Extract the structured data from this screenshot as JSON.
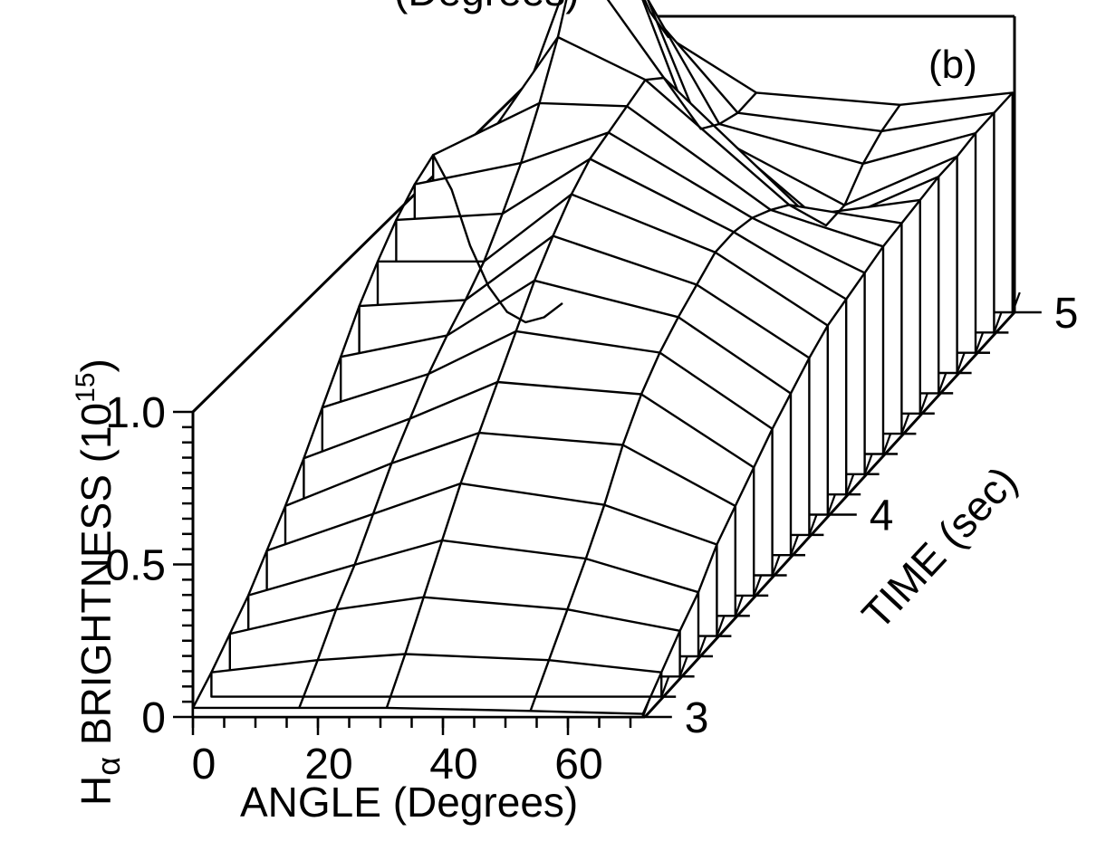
{
  "chart_data": {
    "type": "surface",
    "panel_label": "(b)",
    "title_partial": "(Degrees)",
    "x_axis": {
      "label": "ANGLE (Degrees)",
      "ticks": [
        0,
        20,
        40,
        60
      ],
      "tick_labels": [
        "0",
        "20",
        "40",
        "60"
      ],
      "range": [
        0,
        72
      ]
    },
    "y_axis": {
      "label_main": "H",
      "label_sub": "α",
      "label_rest": " BRIGHTNESS (10",
      "label_sup": "15",
      "label_close": ")",
      "ticks": [
        0,
        0.5,
        1.0
      ],
      "tick_labels": [
        "0",
        "0.5",
        "1.0"
      ],
      "range": [
        0,
        1.0
      ]
    },
    "t_axis": {
      "label": "TIME (sec)",
      "ticks": [
        3,
        4,
        5
      ],
      "tick_labels": [
        "3",
        "4",
        "5"
      ],
      "range": [
        3,
        5
      ]
    },
    "angles": [
      0,
      17,
      31,
      54,
      72
    ],
    "times": [
      3.0,
      3.1,
      3.2,
      3.3,
      3.4,
      3.5,
      3.6,
      3.7,
      3.8,
      3.9,
      4.0,
      4.1,
      4.2,
      4.3,
      4.4,
      4.5,
      4.6,
      4.7,
      4.8,
      4.9,
      5.0
    ],
    "values": [
      [
        0.03,
        0.03,
        0.03,
        0.02,
        0.01
      ],
      [
        0.08,
        0.12,
        0.14,
        0.12,
        0.08
      ],
      [
        0.14,
        0.22,
        0.26,
        0.22,
        0.15
      ],
      [
        0.2,
        0.3,
        0.38,
        0.32,
        0.21
      ],
      [
        0.28,
        0.4,
        0.5,
        0.43,
        0.3
      ],
      [
        0.36,
        0.5,
        0.6,
        0.56,
        0.36
      ],
      [
        0.45,
        0.58,
        0.7,
        0.66,
        0.42
      ],
      [
        0.55,
        0.66,
        0.8,
        0.73,
        0.48
      ],
      [
        0.65,
        0.72,
        0.9,
        0.78,
        0.53
      ],
      [
        0.75,
        0.77,
        0.98,
        0.82,
        0.58
      ],
      [
        0.83,
        0.83,
        1.05,
        0.86,
        0.62
      ],
      [
        0.9,
        0.92,
        1.1,
        0.86,
        0.64
      ],
      [
        0.95,
        1.02,
        1.12,
        0.84,
        0.66
      ],
      [
        0.98,
        1.15,
        1.14,
        0.8,
        0.68
      ],
      [
        0.8,
        1.3,
        1.16,
        0.75,
        0.69
      ],
      [
        0.55,
        1.5,
        1.1,
        0.65,
        0.7
      ],
      [
        0.35,
        1.7,
        0.95,
        0.55,
        0.71
      ],
      [
        0.2,
        1.5,
        0.8,
        0.55,
        0.71
      ],
      [
        0.1,
        1.25,
        0.75,
        0.62,
        0.72
      ],
      [
        0.05,
        1.05,
        0.72,
        0.66,
        0.72
      ],
      [
        0.03,
        0.9,
        0.72,
        0.68,
        0.72
      ]
    ]
  }
}
